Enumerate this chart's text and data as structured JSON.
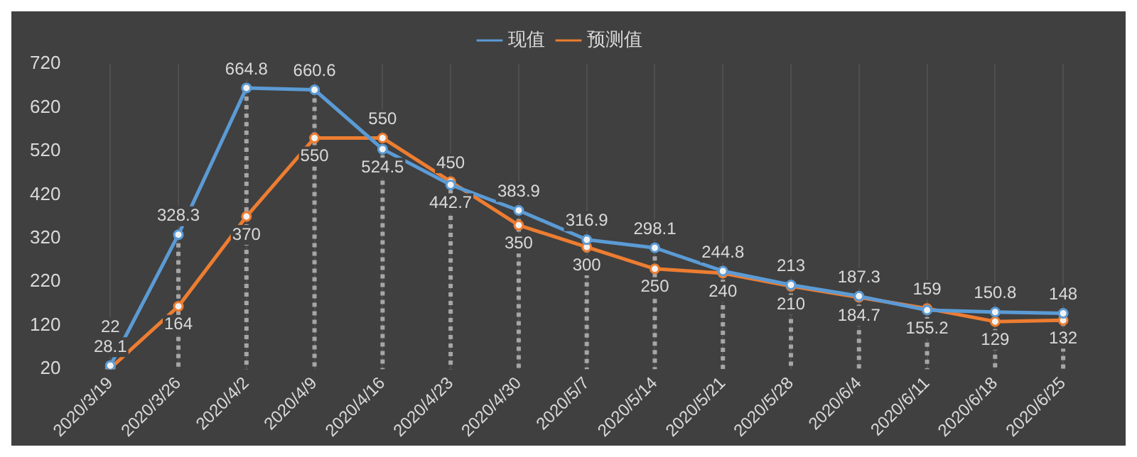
{
  "chart_data": {
    "type": "line",
    "categories": [
      "2020/3/19",
      "2020/3/26",
      "2020/4/2",
      "2020/4/9",
      "2020/4/16",
      "2020/4/23",
      "2020/4/30",
      "2020/5/7",
      "2020/5/14",
      "2020/5/21",
      "2020/5/28",
      "2020/6/4",
      "2020/6/11",
      "2020/6/18",
      "2020/6/25"
    ],
    "series": [
      {
        "name": "现值",
        "color": "#5b9bd5",
        "values": [
          28.1,
          328.3,
          664.8,
          660.6,
          524.5,
          442.7,
          383.9,
          316.9,
          298.1,
          244.8,
          213,
          187.3,
          155.2,
          150.8,
          148
        ]
      },
      {
        "name": "预测值",
        "color": "#ed7d31",
        "values": [
          22,
          164,
          370,
          550,
          550,
          450,
          350,
          300,
          250,
          240,
          210,
          184.7,
          159,
          129,
          132
        ]
      }
    ],
    "ylim": [
      20,
      720
    ],
    "yticks": [
      20,
      120,
      220,
      320,
      420,
      520,
      620,
      720
    ],
    "grid": "x",
    "legend": "top",
    "marker": "circle",
    "line_style": "solid",
    "data_labels": true
  }
}
